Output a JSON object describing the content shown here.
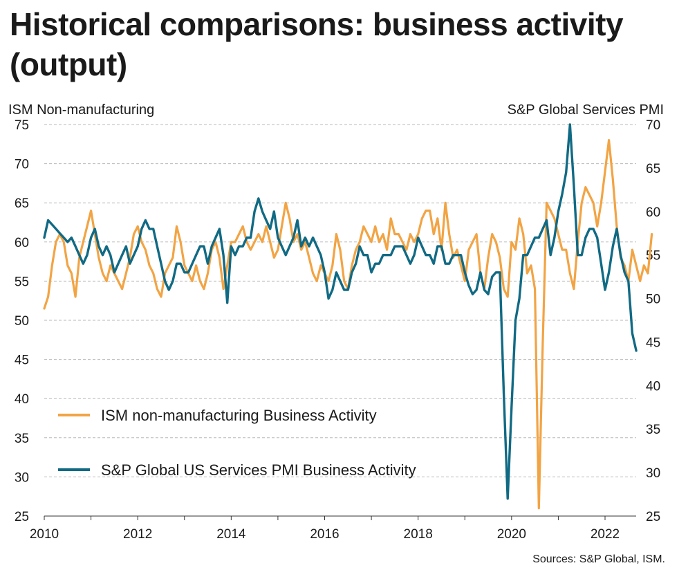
{
  "title": "Historical comparisons: business activity (output)",
  "left_axis_title": "ISM Non-manufacturing",
  "right_axis_title": "S&P Global Services PMI",
  "source": "Sources: S&P Global, ISM.",
  "colors": {
    "ism": "#f2a444",
    "spglobal": "#116a84",
    "grid": "#b8b8b8"
  },
  "chart_data": {
    "type": "line",
    "x_start": 2010.0,
    "x_step": 0.0833,
    "x_ticks": [
      "2010",
      "2012",
      "2014",
      "2016",
      "2018",
      "2020",
      "2022"
    ],
    "x_tick_values": [
      2010,
      2012,
      2014,
      2016,
      2018,
      2020,
      2022
    ],
    "xlim": [
      2010,
      2022.75
    ],
    "y_left": {
      "ticks": [
        "25",
        "30",
        "35",
        "40",
        "45",
        "50",
        "55",
        "60",
        "65",
        "70",
        "75"
      ],
      "lim": [
        25,
        75
      ]
    },
    "y_right": {
      "ticks": [
        "25",
        "30",
        "35",
        "40",
        "45",
        "50",
        "55",
        "60",
        "65",
        "70"
      ],
      "lim": [
        25,
        70
      ]
    },
    "grid": true,
    "legend_position": "left-middle",
    "series": [
      {
        "name": "ISM non-manufacturing Business Activity",
        "axis": "left",
        "color": "#f2a444",
        "values": [
          51.5,
          53,
          57,
          60,
          61,
          60,
          57,
          56,
          53,
          58,
          60,
          62,
          64,
          61,
          58,
          56,
          55,
          57,
          56,
          55,
          54,
          56,
          58,
          61,
          62,
          60,
          59,
          57,
          56,
          54,
          53,
          56,
          57,
          58,
          62,
          60,
          57,
          56,
          55,
          57,
          55,
          54,
          56,
          59,
          60,
          58,
          54,
          57,
          60,
          60,
          61,
          62,
          60,
          59,
          60,
          61,
          60,
          62,
          60,
          58,
          59,
          62,
          65,
          63,
          60,
          61,
          59,
          60,
          58,
          56,
          55,
          57,
          56,
          55,
          57,
          61,
          59,
          55,
          54,
          57,
          59,
          60,
          62,
          61,
          60,
          62,
          60,
          61,
          59,
          63,
          61,
          61,
          60,
          59,
          61,
          60,
          61,
          63,
          64,
          64,
          61,
          63,
          59,
          65,
          61,
          58,
          59,
          57,
          55,
          59,
          60,
          61,
          56,
          54,
          58,
          61,
          60,
          58,
          54,
          53,
          60,
          59,
          63,
          61,
          56,
          57,
          54,
          26,
          47,
          65,
          64,
          63,
          61,
          59,
          59,
          56,
          54,
          60,
          65,
          67,
          66,
          65,
          62,
          65,
          69,
          73,
          68,
          62,
          58,
          57,
          55,
          59,
          57,
          55,
          57,
          56,
          61
        ]
      },
      {
        "name": "S&P Global US Services PMI Business Activity",
        "axis": "right",
        "color": "#116a84",
        "values": [
          57,
          59,
          58.5,
          58,
          57.5,
          57,
          56.5,
          57,
          56,
          55,
          54,
          55,
          57,
          58,
          56,
          55,
          56,
          55,
          53,
          54,
          55,
          56,
          54,
          55,
          56,
          58,
          59,
          58,
          58,
          56,
          54,
          52,
          51,
          52,
          54,
          54,
          53,
          53,
          54,
          55,
          56,
          56,
          54,
          56,
          57,
          58,
          55,
          49.5,
          56,
          55,
          56,
          56,
          57,
          57,
          60,
          61.5,
          60,
          59,
          58,
          60,
          57,
          56,
          55,
          56,
          57,
          59,
          56,
          57,
          56,
          57,
          56,
          55,
          53,
          50,
          51,
          53,
          52,
          51,
          51,
          53,
          54,
          56,
          55,
          55,
          53,
          54,
          54,
          55,
          55,
          55,
          56,
          56,
          56,
          55,
          54,
          55,
          57,
          56,
          55,
          55,
          54,
          56,
          56,
          54,
          54,
          55,
          55,
          55,
          53,
          51.5,
          50.5,
          51,
          53,
          51,
          50.5,
          52.5,
          53,
          53,
          39,
          27,
          37.5,
          47.5,
          50,
          55,
          55,
          56,
          57,
          57,
          58,
          59,
          55,
          57,
          60,
          62,
          64.5,
          70,
          63,
          55,
          55,
          57,
          58,
          58,
          57,
          54,
          51,
          53,
          56,
          58,
          55,
          53,
          52,
          46,
          44
        ]
      }
    ]
  }
}
